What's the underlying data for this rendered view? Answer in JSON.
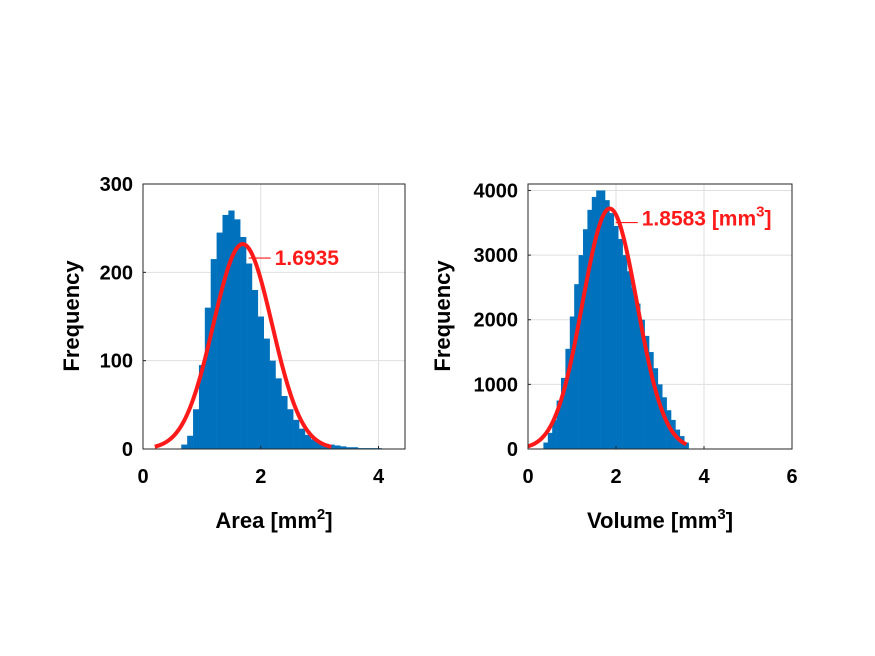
{
  "chart_data": [
    {
      "type": "bar",
      "subtype": "histogram-with-fit",
      "xlabel": "Area [mm",
      "xlabel_sup": "2",
      "xlabel_tail": "]",
      "ylabel": "Frequency",
      "xlim": [
        0,
        4.45
      ],
      "ylim": [
        0,
        300
      ],
      "xticks": [
        0,
        2,
        4
      ],
      "yticks": [
        0,
        100,
        200,
        300
      ],
      "grid": true,
      "bar_color": "#0072bd",
      "fit_color": "#ff1a1a",
      "histogram": {
        "x": [
          0.7,
          0.8,
          0.9,
          1.0,
          1.1,
          1.2,
          1.3,
          1.4,
          1.5,
          1.6,
          1.7,
          1.8,
          1.9,
          2.0,
          2.1,
          2.2,
          2.3,
          2.4,
          2.5,
          2.6,
          2.7,
          2.8,
          2.9,
          3.0,
          3.1,
          3.2,
          3.3,
          3.4,
          3.5,
          3.6,
          3.7,
          3.8,
          3.9,
          4.0
        ],
        "values": [
          5,
          15,
          45,
          95,
          160,
          215,
          245,
          265,
          270,
          260,
          240,
          210,
          180,
          150,
          125,
          100,
          80,
          60,
          45,
          33,
          23,
          16,
          11,
          8,
          6,
          5,
          4,
          3,
          2,
          2,
          1,
          1,
          1,
          1
        ]
      },
      "fit": {
        "mean": 1.6935,
        "sd": 0.5,
        "peak": 232,
        "x_start": 0.2,
        "x_end": 3.2
      },
      "annotation": {
        "text": "1.6935",
        "x": 1.6935,
        "y": 232
      }
    },
    {
      "type": "bar",
      "subtype": "histogram-with-fit",
      "xlabel": "Volume [mm",
      "xlabel_sup": "3",
      "xlabel_tail": "]",
      "ylabel": "Frequency",
      "xlim": [
        0,
        6
      ],
      "ylim": [
        0,
        4100
      ],
      "xticks": [
        0,
        2,
        4,
        6
      ],
      "yticks": [
        0,
        1000,
        2000,
        3000,
        4000
      ],
      "grid": true,
      "bar_color": "#0072bd",
      "fit_color": "#ff1a1a",
      "histogram": {
        "x": [
          0.4,
          0.5,
          0.6,
          0.7,
          0.8,
          0.9,
          1.0,
          1.1,
          1.2,
          1.3,
          1.4,
          1.5,
          1.6,
          1.7,
          1.8,
          1.9,
          2.0,
          2.1,
          2.2,
          2.3,
          2.4,
          2.5,
          2.6,
          2.7,
          2.8,
          2.9,
          3.0,
          3.1,
          3.2,
          3.3,
          3.4,
          3.5,
          3.6
        ],
        "values": [
          100,
          250,
          450,
          750,
          1100,
          1550,
          2050,
          2550,
          3000,
          3400,
          3700,
          3900,
          4000,
          4000,
          3850,
          3650,
          3450,
          3250,
          3000,
          2750,
          2500,
          2250,
          2000,
          1750,
          1500,
          1250,
          1000,
          800,
          600,
          450,
          300,
          200,
          100
        ]
      },
      "fit": {
        "mean": 1.8583,
        "sd": 0.62,
        "peak": 3720,
        "x_start": 0.0,
        "x_end": 3.6
      },
      "annotation": {
        "text": "1.8583 [mm",
        "sup": "3",
        "tail": "]",
        "x": 1.8583,
        "y": 3720
      }
    }
  ]
}
